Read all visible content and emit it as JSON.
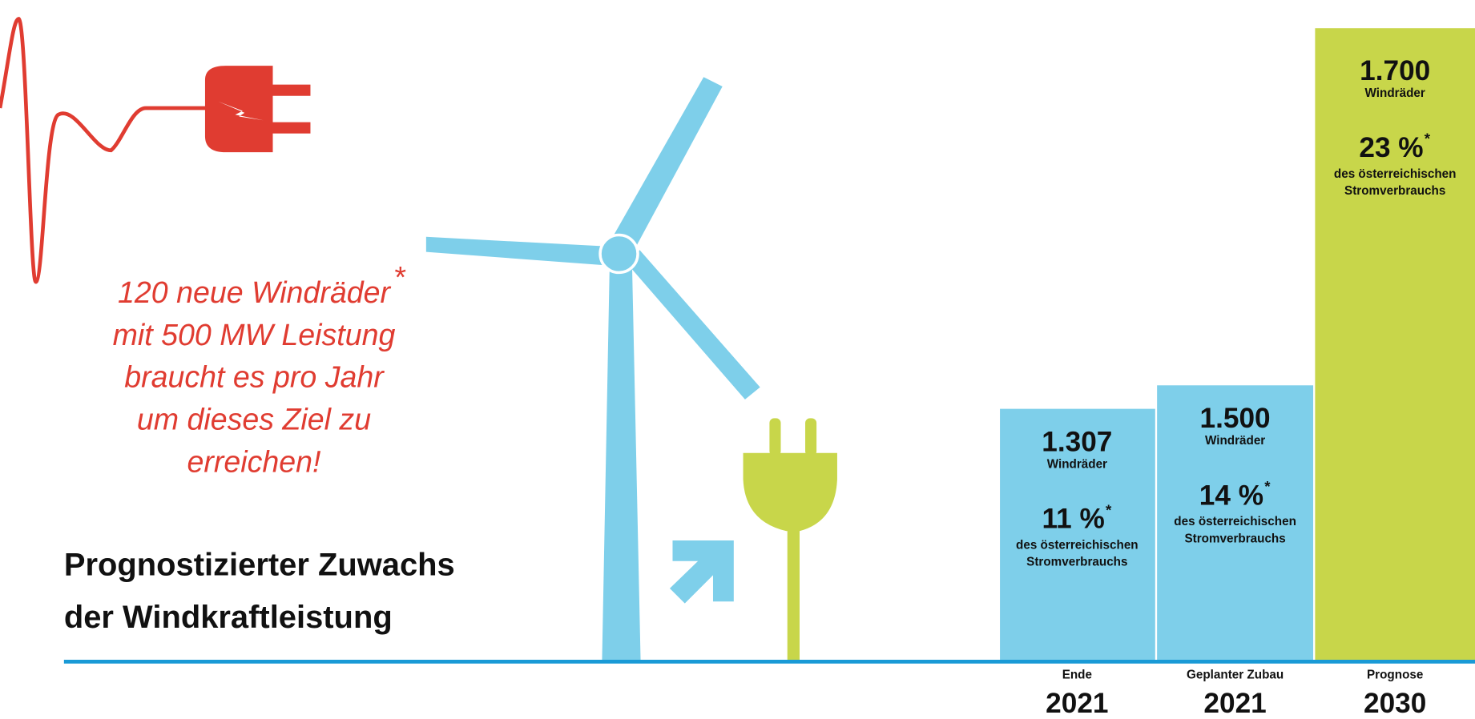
{
  "callout": {
    "lines": [
      "120 neue Windräder",
      "mit 500 MW Leistung",
      "braucht es pro Jahr",
      "um dieses Ziel zu",
      "erreichen!"
    ],
    "star": "*"
  },
  "title": {
    "lines": [
      "Prognostizierter Zuwachs",
      "der Windkraftleistung"
    ]
  },
  "columns": [
    {
      "count": "1.307",
      "unit": "Windräder",
      "percent": "11 %",
      "star": "*",
      "desc": [
        "des österreichischen",
        "Stromverbrauchs"
      ],
      "label": "Ende",
      "year": "2021"
    },
    {
      "count": "1.500",
      "unit": "Windräder",
      "percent": "14 %",
      "star": "*",
      "desc": [
        "des österreichischen",
        "Stromverbrauchs"
      ],
      "label": "Geplanter Zubau",
      "year": "2021"
    },
    {
      "count": "1.700",
      "unit": "Windräder",
      "percent": "23 %",
      "star": "*",
      "desc": [
        "des österreichischen",
        "Stromverbrauchs"
      ],
      "label": "Prognose",
      "year": "2030"
    }
  ]
}
